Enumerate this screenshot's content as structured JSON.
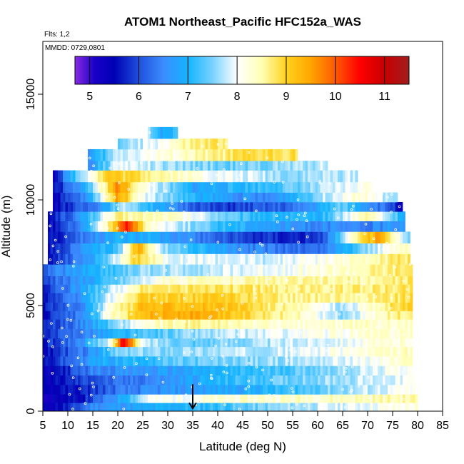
{
  "chart_data": {
    "type": "heatmap",
    "title": "ATOM1 Northeast_Pacific HFC152a_WAS",
    "annotations": {
      "flights": "Flts: 1,2",
      "dates": "MMDD: 0729,0801"
    },
    "xlabel": "Latitude (deg N)",
    "ylabel": "Altitude (m)",
    "xlim": [
      5,
      85
    ],
    "ylim": [
      0,
      17500
    ],
    "x_ticks": [
      5,
      10,
      15,
      20,
      25,
      30,
      35,
      40,
      45,
      50,
      55,
      60,
      65,
      70,
      75,
      80,
      85
    ],
    "x_tick_labels": [
      "5",
      "10",
      "15",
      "20",
      "25",
      "30",
      "35",
      "40",
      "45",
      "50",
      "55",
      "60",
      "65",
      "70",
      "75",
      "80",
      "85"
    ],
    "y_ticks": [
      0,
      5000,
      10000,
      15000
    ],
    "y_tick_labels": [
      "0",
      "5000",
      "10000",
      "15000"
    ],
    "colorbar": {
      "min": 4.7,
      "max": 11.5,
      "ticks": [
        5,
        6,
        7,
        8,
        9,
        10,
        11
      ],
      "tick_labels": [
        "5",
        "6",
        "7",
        "8",
        "9",
        "10",
        "11"
      ],
      "stops": [
        {
          "v": 4.7,
          "c": "#8a2be2"
        },
        {
          "v": 5.1,
          "c": "#1a00c8"
        },
        {
          "v": 5.5,
          "c": "#0000b4"
        },
        {
          "v": 6.0,
          "c": "#1e50dc"
        },
        {
          "v": 6.5,
          "c": "#3c8cff"
        },
        {
          "v": 7.0,
          "c": "#14b4ff"
        },
        {
          "v": 7.5,
          "c": "#78d2ff"
        },
        {
          "v": 8.0,
          "c": "#ffffff"
        },
        {
          "v": 8.5,
          "c": "#ffffb4"
        },
        {
          "v": 9.0,
          "c": "#ffd21e"
        },
        {
          "v": 9.5,
          "c": "#ffa500"
        },
        {
          "v": 10.0,
          "c": "#ff5a00"
        },
        {
          "v": 10.5,
          "c": "#ff0000"
        },
        {
          "v": 11.0,
          "c": "#c80000"
        },
        {
          "v": 11.5,
          "c": "#a01e1e"
        }
      ]
    },
    "marker": {
      "x": 35,
      "y": 600,
      "symbol": "down-arrow"
    },
    "grid": false,
    "layers": [
      {
        "y0": 0,
        "y1": 400,
        "x0": 5,
        "x1": 80,
        "values": [
          [
            5,
            5.3
          ],
          [
            11,
            5.8
          ],
          [
            15,
            6.6
          ],
          [
            25,
            6.8
          ],
          [
            40,
            7.2
          ],
          [
            60,
            7.8
          ],
          [
            80,
            8.2
          ]
        ]
      },
      {
        "y0": 400,
        "y1": 800,
        "x0": 5,
        "x1": 80,
        "values": [
          [
            5,
            5.3
          ],
          [
            12,
            5.5
          ],
          [
            20,
            6.8
          ],
          [
            26,
            8.0
          ],
          [
            45,
            8.3
          ],
          [
            80,
            8.5
          ]
        ]
      },
      {
        "y0": 800,
        "y1": 1250,
        "x0": 5,
        "x1": 79.5,
        "values": [
          [
            5,
            5.4
          ],
          [
            12,
            5.6
          ],
          [
            20,
            6.3
          ],
          [
            30,
            6.6
          ],
          [
            50,
            7.0
          ],
          [
            65,
            7.6
          ],
          [
            80,
            8.1
          ]
        ]
      },
      {
        "y0": 1250,
        "y1": 1700,
        "x0": 5,
        "x1": 79.5,
        "values": [
          [
            5,
            5.3
          ],
          [
            14,
            6.0
          ],
          [
            25,
            6.4
          ],
          [
            45,
            7.2
          ],
          [
            60,
            7.6
          ],
          [
            80,
            8.0
          ]
        ]
      },
      {
        "y0": 1700,
        "y1": 2150,
        "x0": 5,
        "x1": 79.5,
        "values": [
          [
            5,
            5.3
          ],
          [
            10,
            5.8
          ],
          [
            15,
            6.5
          ],
          [
            30,
            6.7
          ],
          [
            50,
            7.2
          ],
          [
            70,
            7.8
          ],
          [
            80,
            8.2
          ]
        ]
      },
      {
        "y0": 2150,
        "y1": 2600,
        "x0": 5,
        "x1": 79,
        "values": [
          [
            5,
            5.5
          ],
          [
            15,
            6.8
          ],
          [
            30,
            7.3
          ],
          [
            50,
            7.6
          ],
          [
            70,
            8.0
          ],
          [
            80,
            8.4
          ]
        ]
      },
      {
        "y0": 2600,
        "y1": 3050,
        "x0": 5,
        "x1": 79,
        "values": [
          [
            5,
            5.5
          ],
          [
            15,
            6.6
          ],
          [
            20,
            7.5
          ],
          [
            30,
            7.6
          ],
          [
            50,
            7.8
          ],
          [
            70,
            8.2
          ],
          [
            80,
            8.4
          ]
        ]
      },
      {
        "y0": 3050,
        "y1": 3450,
        "x0": 5,
        "x1": 79,
        "values": [
          [
            5,
            5.6
          ],
          [
            12,
            6.5
          ],
          [
            18,
            7.8
          ],
          [
            21,
            10.6
          ],
          [
            23,
            9.4
          ],
          [
            25,
            7.8
          ],
          [
            35,
            7.4
          ],
          [
            55,
            7.8
          ],
          [
            80,
            8.3
          ]
        ]
      },
      {
        "y0": 3450,
        "y1": 3900,
        "x0": 5,
        "x1": 79,
        "values": [
          [
            5,
            5.6
          ],
          [
            12,
            6.4
          ],
          [
            20,
            7.0
          ],
          [
            35,
            7.6
          ],
          [
            55,
            8.0
          ],
          [
            80,
            8.4
          ]
        ]
      },
      {
        "y0": 3900,
        "y1": 4350,
        "x0": 5,
        "x1": 79,
        "values": [
          [
            5,
            5.7
          ],
          [
            12,
            6.4
          ],
          [
            18,
            7.3
          ],
          [
            25,
            8.2
          ],
          [
            35,
            8.6
          ],
          [
            55,
            8.2
          ],
          [
            75,
            8.4
          ],
          [
            80,
            8.3
          ]
        ]
      },
      {
        "y0": 4350,
        "y1": 4750,
        "x0": 5,
        "x1": 79,
        "values": [
          [
            5,
            5.6
          ],
          [
            14,
            6.6
          ],
          [
            18,
            8.2
          ],
          [
            25,
            9.3
          ],
          [
            35,
            9.4
          ],
          [
            45,
            9.0
          ],
          [
            55,
            8.5
          ],
          [
            65,
            7.6
          ],
          [
            75,
            8.6
          ],
          [
            80,
            8.8
          ]
        ]
      },
      {
        "y0": 4750,
        "y1": 5150,
        "x0": 5,
        "x1": 79,
        "values": [
          [
            5,
            5.7
          ],
          [
            14,
            6.7
          ],
          [
            18,
            8.1
          ],
          [
            25,
            9.2
          ],
          [
            35,
            9.3
          ],
          [
            45,
            9.0
          ],
          [
            55,
            8.5
          ],
          [
            65,
            7.7
          ],
          [
            75,
            8.8
          ],
          [
            80,
            9.0
          ]
        ]
      },
      {
        "y0": 5150,
        "y1": 5600,
        "x0": 5,
        "x1": 79,
        "values": [
          [
            5,
            5.6
          ],
          [
            12,
            6.5
          ],
          [
            18,
            7.8
          ],
          [
            25,
            9.0
          ],
          [
            40,
            9.0
          ],
          [
            55,
            8.6
          ],
          [
            70,
            8.6
          ],
          [
            80,
            8.9
          ]
        ]
      },
      {
        "y0": 5600,
        "y1": 6000,
        "x0": 5,
        "x1": 79,
        "values": [
          [
            5,
            5.7
          ],
          [
            12,
            6.7
          ],
          [
            18,
            7.6
          ],
          [
            25,
            8.7
          ],
          [
            40,
            8.8
          ],
          [
            60,
            8.6
          ],
          [
            80,
            8.8
          ]
        ]
      },
      {
        "y0": 6000,
        "y1": 6400,
        "x0": 5,
        "x1": 79,
        "values": [
          [
            5,
            6.0
          ],
          [
            14,
            6.8
          ],
          [
            22,
            7.6
          ],
          [
            30,
            8.3
          ],
          [
            50,
            8.5
          ],
          [
            70,
            8.5
          ],
          [
            80,
            8.8
          ]
        ]
      },
      {
        "y0": 6400,
        "y1": 6950,
        "x0": 5,
        "x1": 79,
        "values": [
          [
            5,
            6.2
          ],
          [
            15,
            7.0
          ],
          [
            25,
            7.6
          ],
          [
            40,
            7.8
          ],
          [
            60,
            8.2
          ],
          [
            80,
            8.8
          ]
        ]
      },
      {
        "y0": 6950,
        "y1": 7450,
        "x0": 6,
        "x1": 78.5,
        "values": [
          [
            6,
            5.5
          ],
          [
            12,
            6.4
          ],
          [
            18,
            7.4
          ],
          [
            24,
            9.1
          ],
          [
            30,
            8.0
          ],
          [
            50,
            7.8
          ],
          [
            70,
            8.4
          ],
          [
            78,
            8.8
          ]
        ]
      },
      {
        "y0": 7450,
        "y1": 7950,
        "x0": 6,
        "x1": 78.5,
        "values": [
          [
            6,
            5.5
          ],
          [
            12,
            6.5
          ],
          [
            20,
            7.2
          ],
          [
            24,
            9.4
          ],
          [
            30,
            7.5
          ],
          [
            45,
            6.5
          ],
          [
            60,
            6.2
          ],
          [
            70,
            7.6
          ],
          [
            78,
            8.5
          ]
        ]
      },
      {
        "y0": 7950,
        "y1": 8500,
        "x0": 6,
        "x1": 78.5,
        "values": [
          [
            6,
            5.4
          ],
          [
            12,
            6.3
          ],
          [
            20,
            7.0
          ],
          [
            30,
            6.8
          ],
          [
            45,
            5.9
          ],
          [
            60,
            5.7
          ],
          [
            68,
            8.6
          ],
          [
            72,
            9.5
          ],
          [
            78,
            7.5
          ]
        ]
      },
      {
        "y0": 8500,
        "y1": 9000,
        "x0": 6,
        "x1": 77.5,
        "values": [
          [
            6,
            5.4
          ],
          [
            12,
            6.4
          ],
          [
            18,
            8.5
          ],
          [
            22,
            10.5
          ],
          [
            26,
            8.3
          ],
          [
            40,
            7.2
          ],
          [
            55,
            6.6
          ],
          [
            70,
            6.4
          ],
          [
            77,
            6.8
          ]
        ]
      },
      {
        "y0": 9000,
        "y1": 9450,
        "x0": 6,
        "x1": 77.5,
        "values": [
          [
            6,
            5.5
          ],
          [
            12,
            6.5
          ],
          [
            20,
            8.6
          ],
          [
            30,
            8.4
          ],
          [
            45,
            7.2
          ],
          [
            60,
            6.9
          ],
          [
            70,
            8.6
          ],
          [
            77,
            7.0
          ]
        ]
      },
      {
        "y0": 9450,
        "y1": 9900,
        "x0": 7,
        "x1": 77,
        "values": [
          [
            7,
            5.5
          ],
          [
            14,
            6.2
          ],
          [
            22,
            7.8
          ],
          [
            30,
            6.6
          ],
          [
            40,
            5.8
          ],
          [
            55,
            6.2
          ],
          [
            65,
            7.4
          ],
          [
            75,
            6.0
          ],
          [
            77,
            5.3
          ]
        ]
      },
      {
        "y0": 9900,
        "y1": 10350,
        "x0": 7,
        "x1": 76,
        "values": [
          [
            7,
            5.4
          ],
          [
            14,
            6.6
          ],
          [
            20,
            9.6
          ],
          [
            25,
            8.0
          ],
          [
            35,
            7.0
          ],
          [
            50,
            6.4
          ],
          [
            60,
            7.6
          ],
          [
            68,
            8.4
          ],
          [
            76,
            7.5
          ]
        ]
      },
      {
        "y0": 10350,
        "y1": 10850,
        "x0": 7,
        "x1": 71.5,
        "values": [
          [
            7,
            5.5
          ],
          [
            13,
            6.8
          ],
          [
            20,
            9.7
          ],
          [
            25,
            8.2
          ],
          [
            35,
            6.8
          ],
          [
            50,
            7.2
          ],
          [
            60,
            7.6
          ],
          [
            71,
            8.2
          ]
        ]
      },
      {
        "y0": 10850,
        "y1": 11400,
        "x0": 7,
        "x1": 68,
        "values": [
          [
            7,
            5.4
          ],
          [
            12,
            7.5
          ],
          [
            18,
            9.1
          ],
          [
            25,
            8.8
          ],
          [
            40,
            8.0
          ],
          [
            55,
            7.6
          ],
          [
            68,
            7.8
          ]
        ]
      },
      {
        "y0": 11400,
        "y1": 11850,
        "x0": 14,
        "x1": 62,
        "values": [
          [
            14,
            6.4
          ],
          [
            20,
            8.0
          ],
          [
            30,
            7.6
          ],
          [
            45,
            7.4
          ],
          [
            62,
            7.8
          ]
        ]
      },
      {
        "y0": 11850,
        "y1": 12400,
        "x0": 14,
        "x1": 56,
        "values": [
          [
            14,
            6.5
          ],
          [
            20,
            7.8
          ],
          [
            30,
            8.2
          ],
          [
            45,
            8.8
          ],
          [
            56,
            8.9
          ]
        ]
      },
      {
        "y0": 12400,
        "y1": 12900,
        "x0": 20,
        "x1": 42,
        "values": [
          [
            20,
            7.4
          ],
          [
            28,
            8.0
          ],
          [
            35,
            8.6
          ],
          [
            42,
            8.8
          ]
        ]
      },
      {
        "y0": 12900,
        "y1": 13450,
        "x0": 26,
        "x1": 32,
        "values": [
          [
            26,
            7.8
          ],
          [
            29,
            6.8
          ],
          [
            32,
            7.2
          ]
        ]
      }
    ]
  }
}
